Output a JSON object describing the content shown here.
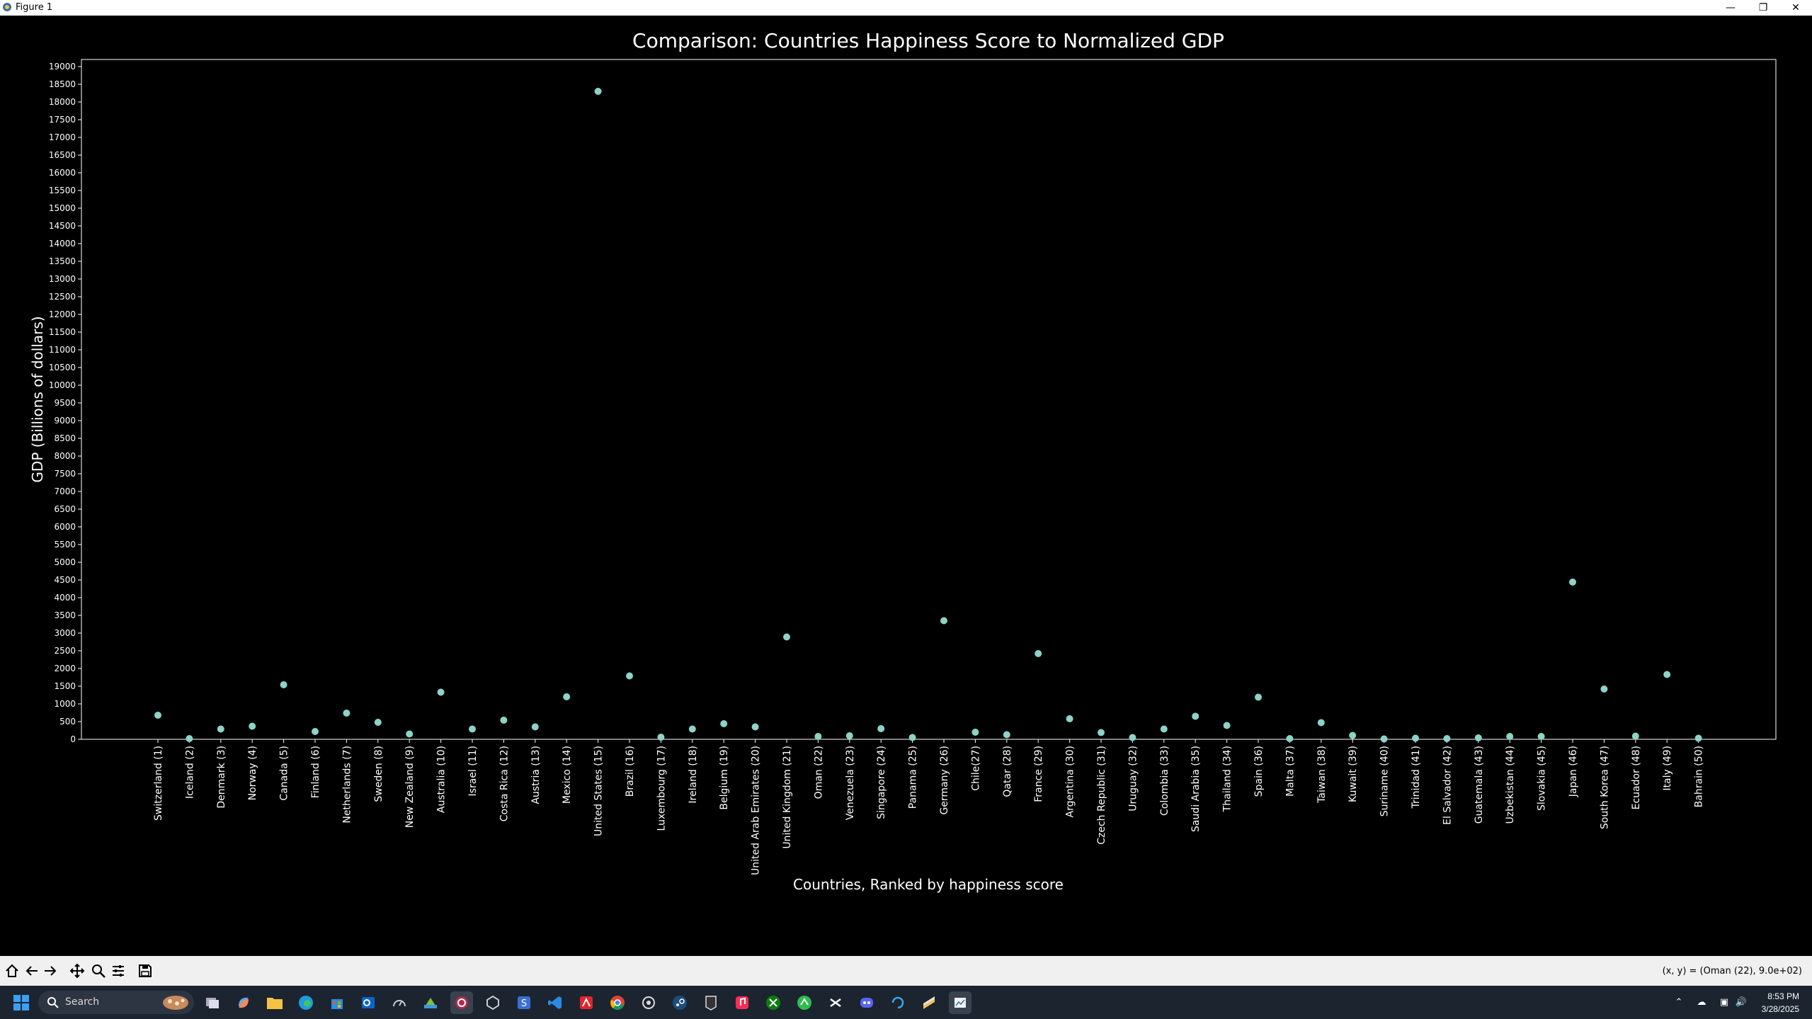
{
  "window": {
    "title": "Figure 1"
  },
  "chart_data": {
    "type": "scatter",
    "title": "Comparison: Countries Happiness Score to Normalized GDP",
    "xlabel": "Countries, Ranked by happiness score",
    "ylabel": "GDP (Billions of dollars)",
    "ylim": [
      0,
      19200
    ],
    "yticks": [
      0,
      500,
      1000,
      1500,
      2000,
      2500,
      3000,
      3500,
      4000,
      4500,
      5000,
      5500,
      6000,
      6500,
      7000,
      7500,
      8000,
      8500,
      9000,
      9500,
      10000,
      10500,
      11000,
      11500,
      12000,
      12500,
      13000,
      13500,
      14000,
      14500,
      15000,
      15500,
      16000,
      16500,
      17000,
      17500,
      18000,
      18500,
      19000
    ],
    "grid": false,
    "point_color": "#8dd3c7",
    "categories": [
      "Switzerland (1)",
      "Iceland (2)",
      "Denmark (3)",
      "Norway (4)",
      "Canada (5)",
      "Finland (6)",
      "Netherlands (7)",
      "Sweden (8)",
      "New Zealand (9)",
      "Australia (10)",
      "Israel (11)",
      "Costa Rica (12)",
      "Austria (13)",
      "Mexico (14)",
      "United States (15)",
      "Brazil (16)",
      "Luxembourg (17)",
      "Ireland (18)",
      "Belgium (19)",
      "United Arab Emirates (20)",
      "United Kingdom (21)",
      "Oman (22)",
      "Venezuela (23)",
      "Singapore (24)",
      "Panama (25)",
      "Germany (26)",
      "Chile(27)",
      "Qatar (28)",
      "France (29)",
      "Argentina (30)",
      "Czech Republic (31)",
      "Uruguay (32)",
      "Colombia (33)",
      "Saudi Arabia (35)",
      "Thailand (34)",
      "Spain (36)",
      "Malta (37)",
      "Taiwan (38)",
      "Kuwait (39)",
      "Suriname (40)",
      "Trinidad (41)",
      "El Salvador (42)",
      "Guatemala (43)",
      "Uzbekistan (44)",
      "Slovakia (45)",
      "Japan (46)",
      "South Korea (47)",
      "Ecuador (48)",
      "Italy (49)",
      "Bahrain (50)"
    ],
    "values": [
      680,
      20,
      290,
      370,
      1540,
      220,
      740,
      480,
      150,
      1330,
      290,
      540,
      350,
      1200,
      18300,
      1790,
      60,
      290,
      440,
      350,
      2890,
      80,
      100,
      300,
      50,
      3350,
      200,
      130,
      2420,
      580,
      190,
      50,
      290,
      650,
      390,
      1190,
      20,
      470,
      110,
      10,
      30,
      20,
      40,
      80,
      80,
      4440,
      1420,
      90,
      1830,
      30
    ]
  },
  "toolbar": {
    "buttons": [
      "home-icon",
      "back-icon",
      "forward-icon",
      "pan-icon",
      "zoom-icon",
      "configure-icon",
      "save-icon"
    ],
    "coords": "(x, y) = (Oman (22), 9.0e+02)"
  },
  "taskbar": {
    "search_label": "Search",
    "time": "8:53 PM",
    "date": "3/28/2025"
  }
}
